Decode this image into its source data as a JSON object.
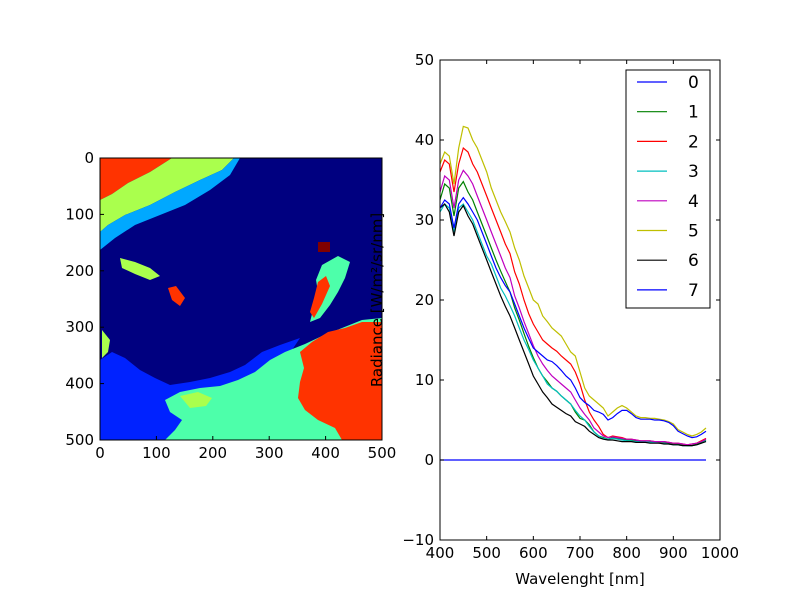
{
  "chart_data": [
    {
      "type": "heatmap",
      "title": "",
      "xlabel": "",
      "ylabel": "",
      "xlim": [
        0,
        500
      ],
      "ylim": [
        500,
        0
      ],
      "x_ticks": [
        "0",
        "100",
        "200",
        "300",
        "400",
        "500"
      ],
      "y_ticks": [
        "0",
        "100",
        "200",
        "300",
        "400",
        "500"
      ],
      "colors": {
        "background_class": "#000080",
        "class_orangered": "#ff3300",
        "class_yellowgreen": "#aaff4d",
        "class_skyblue": "#00a8ff",
        "class_blue": "#0022ff",
        "class_aquamarine": "#4dffaa",
        "class_darkred": "#800000"
      }
    },
    {
      "type": "line",
      "title": "",
      "xlabel": "Wavelenght [nm]",
      "ylabel": "Radiance [W/m²/sr/nm]",
      "xlim": [
        400,
        1000
      ],
      "ylim": [
        -10,
        50
      ],
      "x_ticks": [
        "400",
        "500",
        "600",
        "700",
        "800",
        "900",
        "1000"
      ],
      "y_ticks": [
        "−10",
        "0",
        "10",
        "20",
        "30",
        "40",
        "50"
      ],
      "legend_position": "upper right",
      "grid": false,
      "x": [
        400,
        410,
        420,
        430,
        440,
        450,
        460,
        470,
        480,
        490,
        500,
        510,
        520,
        530,
        540,
        550,
        560,
        570,
        580,
        590,
        600,
        610,
        620,
        630,
        640,
        650,
        660,
        670,
        680,
        690,
        700,
        710,
        720,
        730,
        740,
        750,
        760,
        770,
        780,
        790,
        800,
        810,
        820,
        830,
        840,
        850,
        860,
        870,
        880,
        890,
        900,
        910,
        920,
        930,
        940,
        950,
        960,
        970
      ],
      "series": [
        {
          "name": "0",
          "color": "#0000ff",
          "values": [
            0,
            0,
            0,
            0,
            0,
            0,
            0,
            0,
            0,
            0,
            0,
            0,
            0,
            0,
            0,
            0,
            0,
            0,
            0,
            0,
            0,
            0,
            0,
            0,
            0,
            0,
            0,
            0,
            0,
            0,
            0,
            0,
            0,
            0,
            0,
            0,
            0,
            0,
            0,
            0,
            0,
            0,
            0,
            0,
            0,
            0,
            0,
            0,
            0,
            0,
            0,
            0,
            0,
            0,
            0,
            0,
            0,
            0
          ]
        },
        {
          "name": "1",
          "color": "#008000",
          "values": [
            32.5,
            34.5,
            34,
            30.5,
            34,
            34.8,
            33.5,
            32.5,
            31,
            29.5,
            28,
            26.5,
            25,
            23.6,
            22.3,
            21,
            19,
            17.5,
            15.8,
            14.2,
            12.8,
            11.5,
            10.5,
            9.8,
            9,
            8.6,
            8,
            7.5,
            7,
            6,
            5.2,
            5,
            4.4,
            3.5,
            3,
            2.8,
            2.6,
            2.8,
            2.7,
            2.6,
            2.5,
            2.5,
            2.4,
            2.3,
            2.3,
            2.3,
            2.2,
            2.2,
            2.2,
            2.1,
            2,
            2,
            1.9,
            1.8,
            1.8,
            2,
            2.2,
            2.5
          ]
        },
        {
          "name": "2",
          "color": "#ff0000",
          "values": [
            36,
            37.5,
            37,
            33.5,
            37,
            39,
            38.5,
            37,
            36,
            34.5,
            33,
            31.5,
            30,
            28.5,
            27,
            25.8,
            23.5,
            22,
            20,
            18.3,
            17,
            16,
            15,
            14.5,
            14,
            13.6,
            13,
            12.5,
            12,
            11,
            9.5,
            7.5,
            6,
            5,
            4.2,
            3.2,
            2.8,
            3,
            2.9,
            2.8,
            2.6,
            2.6,
            2.5,
            2.4,
            2.4,
            2.4,
            2.3,
            2.3,
            2.3,
            2.2,
            2.1,
            2.1,
            2,
            1.9,
            2,
            2.1,
            2.4,
            2.7
          ]
        },
        {
          "name": "3",
          "color": "#00bfbf",
          "values": [
            31,
            32,
            31.5,
            28.5,
            31.5,
            32,
            31,
            30,
            28.5,
            27,
            25.5,
            24.5,
            23,
            21.5,
            20.5,
            19.3,
            18,
            16.5,
            15,
            13.8,
            12.5,
            11.5,
            10.5,
            9.5,
            9,
            8.6,
            8,
            7.5,
            7,
            6.2,
            5.5,
            5,
            4.2,
            3.5,
            3,
            2.7,
            2.6,
            2.7,
            2.6,
            2.5,
            2.4,
            2.4,
            2.3,
            2.3,
            2.3,
            2.2,
            2.2,
            2.1,
            2.1,
            2,
            1.9,
            1.9,
            1.8,
            1.8,
            1.8,
            1.9,
            2.1,
            2.4
          ]
        },
        {
          "name": "4",
          "color": "#bf00bf",
          "values": [
            33.5,
            35.5,
            35,
            31.5,
            35,
            36.2,
            35.5,
            34.5,
            33,
            31.5,
            30,
            28.5,
            27,
            25.5,
            24,
            22.8,
            20.5,
            19,
            17.3,
            15.8,
            14.3,
            13,
            12,
            11.2,
            10.5,
            10,
            9.5,
            9,
            8.5,
            7.5,
            6.5,
            5.7,
            5,
            4,
            3.5,
            3,
            2.8,
            2.9,
            2.8,
            2.7,
            2.6,
            2.6,
            2.5,
            2.4,
            2.4,
            2.4,
            2.3,
            2.3,
            2.3,
            2.2,
            2.1,
            2.1,
            2,
            1.9,
            2,
            2.1,
            2.3,
            2.6
          ]
        },
        {
          "name": "5",
          "color": "#bfbf00",
          "values": [
            37,
            38.5,
            38,
            34.5,
            39,
            41.7,
            41.5,
            40,
            39,
            37.5,
            36,
            34,
            32.5,
            31,
            29.8,
            28.5,
            26.5,
            25,
            23,
            21.5,
            20,
            19.5,
            18,
            17.3,
            16.5,
            16,
            15.5,
            14.5,
            13.5,
            13,
            11,
            9,
            8,
            7.5,
            7,
            6.5,
            5.5,
            6,
            6.5,
            6.8,
            6.5,
            6,
            5.5,
            5.3,
            5.3,
            5.2,
            5.2,
            5.1,
            5,
            4.8,
            4.5,
            3.8,
            3.5,
            3.2,
            3,
            3.2,
            3.5,
            4
          ]
        },
        {
          "name": "6",
          "color": "#000000",
          "values": [
            31.5,
            32,
            31,
            28,
            31,
            31.8,
            30.5,
            29.5,
            28,
            26.5,
            25,
            23.5,
            22,
            20.5,
            19.2,
            18,
            16.5,
            15,
            13.5,
            12,
            10.5,
            9.5,
            8.5,
            7.8,
            7,
            6.6,
            6.2,
            5.8,
            5.5,
            4.8,
            4.5,
            4.2,
            3.6,
            3.2,
            2.8,
            2.6,
            2.5,
            2.5,
            2.4,
            2.3,
            2.3,
            2.3,
            2.2,
            2.2,
            2.2,
            2.1,
            2.1,
            2.1,
            2,
            2,
            1.9,
            1.9,
            1.8,
            1.8,
            1.8,
            1.9,
            2.1,
            2.3
          ]
        },
        {
          "name": "7",
          "color": "#0000ff",
          "values": [
            31.5,
            32.5,
            32,
            29,
            32,
            32.8,
            32,
            31,
            30,
            28.5,
            27,
            25.5,
            24,
            22.8,
            21.8,
            21,
            19.5,
            18,
            16.5,
            15.2,
            14,
            13.5,
            13,
            12.5,
            12.3,
            11.8,
            11.2,
            10.5,
            10,
            9,
            7.8,
            7.2,
            6.8,
            6.2,
            6,
            5.7,
            5,
            5.3,
            5.8,
            6.2,
            6.2,
            5.8,
            5.3,
            5.1,
            5.1,
            5.1,
            5,
            5,
            4.9,
            4.7,
            4.3,
            3.6,
            3.3,
            3,
            2.8,
            2.9,
            3.2,
            3.6
          ]
        }
      ]
    }
  ]
}
